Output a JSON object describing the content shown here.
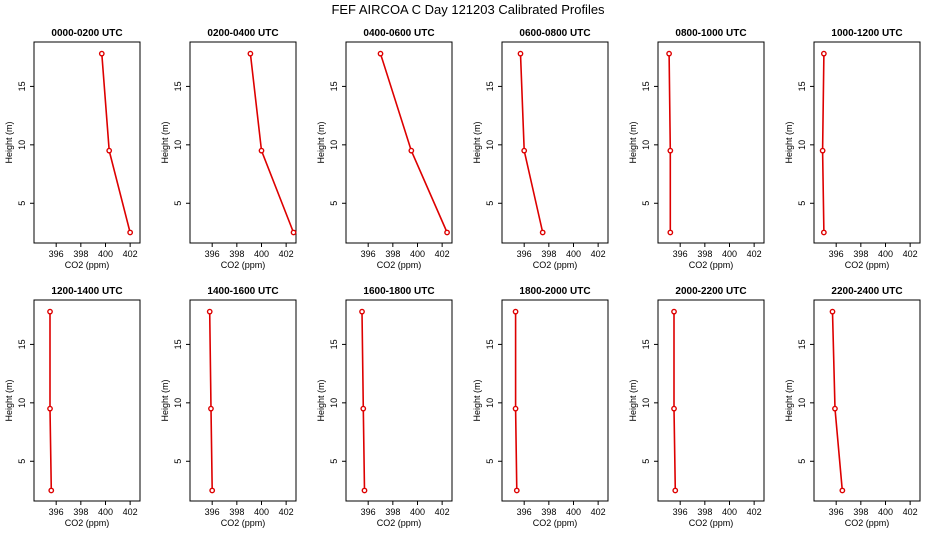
{
  "chart_data": {
    "type": "line",
    "title": "FEF AIRCOA C  Day 121203  Calibrated Profiles",
    "xlabel": "CO2 (ppm)",
    "ylabel": "Height (m)",
    "xlim": [
      394.2,
      402.8
    ],
    "ylim": [
      1.6,
      18.8
    ],
    "xticks": [
      396,
      398,
      400,
      402
    ],
    "yticks": [
      5,
      10,
      15
    ],
    "heights": [
      2.5,
      9.5,
      17.8
    ],
    "series_color": "#dd0000",
    "panels": [
      {
        "name": "0000-0200 UTC",
        "co2": [
          402.0,
          400.3,
          399.7
        ]
      },
      {
        "name": "0200-0400 UTC",
        "co2": [
          402.6,
          400.0,
          399.1
        ]
      },
      {
        "name": "0400-0600 UTC",
        "co2": [
          402.4,
          399.5,
          397.0
        ]
      },
      {
        "name": "0600-0800 UTC",
        "co2": [
          397.5,
          396.0,
          395.7
        ]
      },
      {
        "name": "0800-1000 UTC",
        "co2": [
          395.2,
          395.2,
          395.1
        ]
      },
      {
        "name": "1000-1200 UTC",
        "co2": [
          395.0,
          394.9,
          395.0
        ]
      },
      {
        "name": "1200-1400 UTC",
        "co2": [
          395.6,
          395.5,
          395.5
        ]
      },
      {
        "name": "1400-1600 UTC",
        "co2": [
          396.0,
          395.9,
          395.8
        ]
      },
      {
        "name": "1600-1800 UTC",
        "co2": [
          395.7,
          395.6,
          395.5
        ]
      },
      {
        "name": "1800-2000 UTC",
        "co2": [
          395.4,
          395.3,
          395.3
        ]
      },
      {
        "name": "2000-2200 UTC",
        "co2": [
          395.6,
          395.5,
          395.5
        ]
      },
      {
        "name": "2200-2400 UTC",
        "co2": [
          396.5,
          395.9,
          395.7
        ]
      }
    ]
  }
}
